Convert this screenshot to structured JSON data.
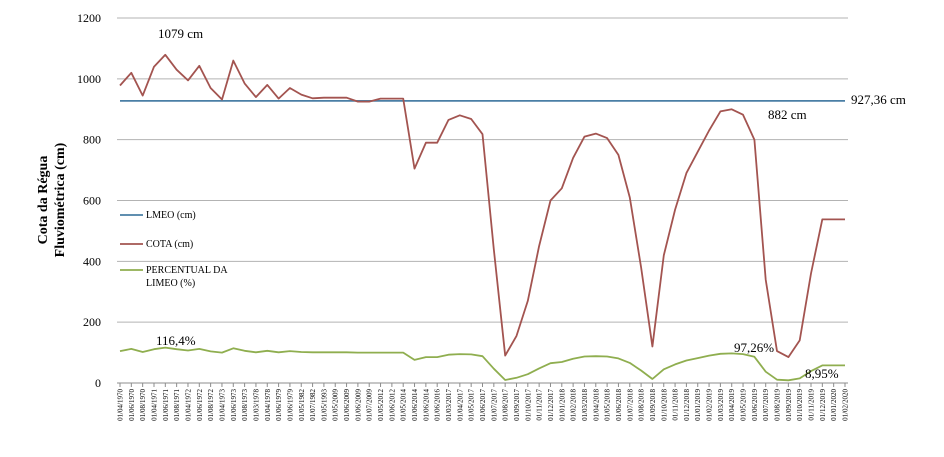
{
  "chart_data": {
    "type": "line",
    "ylabel": "Cota da Régua Fluviométrica (cm)",
    "ylim": [
      0,
      1200
    ],
    "yticks": [
      0,
      200,
      400,
      600,
      800,
      1000,
      1200
    ],
    "grid": "horizontal",
    "legend_position": "left",
    "categories": [
      "01/04/1970",
      "01/06/1970",
      "01/08/1970",
      "01/04/1971",
      "01/06/1971",
      "01/08/1971",
      "01/04/1972",
      "01/06/1972",
      "01/08/1972",
      "01/04/1973",
      "01/06/1973",
      "01/08/1973",
      "01/03/1978",
      "01/04/1978",
      "01/06/1979",
      "01/06/1979",
      "01/05/1982",
      "01/07/1982",
      "01/05/1993",
      "01/05/2009",
      "01/06/2009",
      "01/06/2009",
      "01/07/2009",
      "01/05/2012",
      "01/06/2012",
      "01/05/2014",
      "01/06/2014",
      "01/06/2014",
      "01/06/2016",
      "01/03/2017",
      "01/04/2017",
      "01/05/2017",
      "01/06/2017",
      "01/07/2017",
      "01/08/2017",
      "01/09/2017",
      "01/10/2017",
      "01/11/2017",
      "01/12/2017",
      "01/01/2018",
      "01/02/2018",
      "01/03/2018",
      "01/04/2018",
      "01/05/2018",
      "01/06/2018",
      "01/07/2018",
      "01/08/2018",
      "01/09/2018",
      "01/10/2018",
      "01/11/2018",
      "01/12/2018",
      "01/01/2019",
      "01/02/2019",
      "01/03/2019",
      "01/04/2019",
      "01/05/2019",
      "01/06/2019",
      "01/07/2019",
      "01/08/2019",
      "01/09/2019",
      "01/10/2019",
      "01/11/2019",
      "01/12/2019",
      "01/01/2020",
      "01/02/2020"
    ],
    "series": [
      {
        "name": "LMEO (cm)",
        "color": "#4a7fa5",
        "values": [
          927.36,
          927.36,
          927.36,
          927.36,
          927.36,
          927.36,
          927.36,
          927.36,
          927.36,
          927.36,
          927.36,
          927.36,
          927.36,
          927.36,
          927.36,
          927.36,
          927.36,
          927.36,
          927.36,
          927.36,
          927.36,
          927.36,
          927.36,
          927.36,
          927.36,
          927.36,
          927.36,
          927.36,
          927.36,
          927.36,
          927.36,
          927.36,
          927.36,
          927.36,
          927.36,
          927.36,
          927.36,
          927.36,
          927.36,
          927.36,
          927.36,
          927.36,
          927.36,
          927.36,
          927.36,
          927.36,
          927.36,
          927.36,
          927.36,
          927.36,
          927.36,
          927.36,
          927.36,
          927.36,
          927.36,
          927.36,
          927.36,
          927.36,
          927.36,
          927.36,
          927.36,
          927.36,
          927.36,
          927.36,
          927.36
        ]
      },
      {
        "name": "COTA (cm)",
        "color": "#a35450",
        "values": [
          978,
          1020,
          945,
          1040,
          1079,
          1030,
          995,
          1043,
          970,
          932,
          1060,
          985,
          940,
          980,
          935,
          970,
          948,
          936,
          938,
          938,
          938,
          925,
          925,
          935,
          935,
          935,
          705,
          790,
          790,
          865,
          880,
          868,
          818,
          440,
          90,
          155,
          270,
          450,
          600,
          640,
          740,
          810,
          820,
          805,
          750,
          610,
          380,
          120,
          420,
          570,
          690,
          760,
          830,
          893,
          900,
          882,
          800,
          340,
          105,
          85,
          140,
          360,
          538,
          538,
          538
        ]
      },
      {
        "name": "PERCENTUAL DA LIMEO (%)",
        "color": "#8fae4f",
        "values": [
          105,
          112,
          102,
          111,
          116.4,
          111,
          107,
          112,
          104,
          100,
          114,
          106,
          101,
          106,
          101,
          105,
          102,
          101,
          101,
          101,
          101,
          100,
          100,
          100,
          100,
          100,
          76,
          85,
          85,
          93,
          95,
          94,
          88,
          47,
          10,
          17,
          29,
          48,
          65,
          69,
          80,
          87,
          88,
          87,
          81,
          66,
          41,
          13,
          45,
          61,
          74,
          82,
          90,
          96,
          97.26,
          95,
          86,
          37,
          11,
          8.95,
          15,
          39,
          58,
          58,
          58
        ]
      }
    ],
    "annotations": [
      {
        "text": "1079 cm"
      },
      {
        "text": "927,36 cm"
      },
      {
        "text": "882 cm"
      },
      {
        "text": "116,4%"
      },
      {
        "text": "97,26%"
      },
      {
        "text": "8,95%"
      }
    ]
  }
}
